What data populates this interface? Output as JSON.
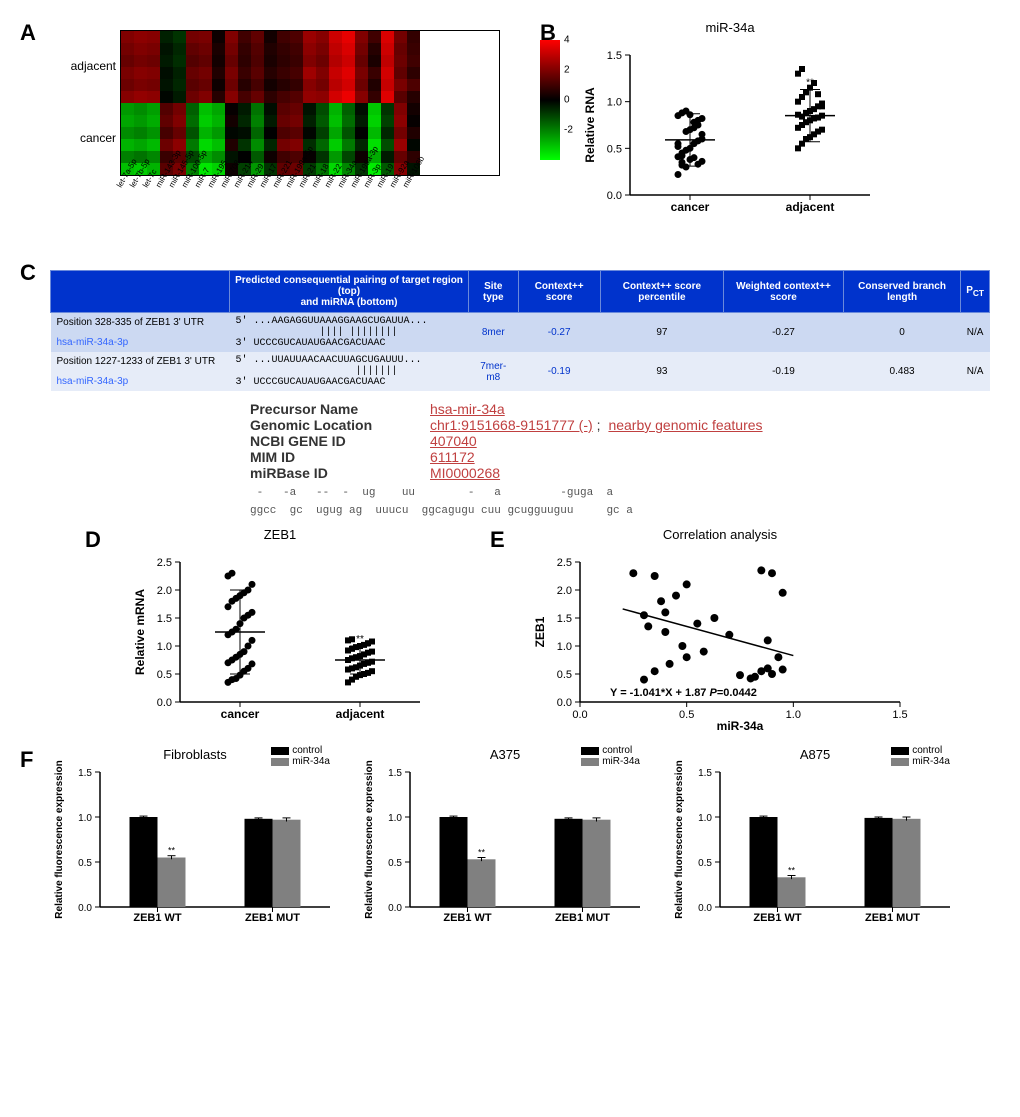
{
  "panelA": {
    "label": "A",
    "type": "heatmap",
    "row_group_labels": [
      "adjacent",
      "cancer"
    ],
    "colorbar_ticks": [
      4,
      2,
      0,
      -2
    ],
    "columns": [
      "let-7a-5p",
      "let-7b-5p",
      "let-7c",
      "miR-143-3p",
      "miR-145-5p",
      "miR-100-5p",
      "miR-7",
      "miR-195",
      "miR-708",
      "miR-214",
      "miR-29",
      "miR-17",
      "miR-221",
      "miR-199a-5p",
      "miR-21",
      "miR-18",
      "miR-22",
      "miR-34a",
      "miR-199a-3p",
      "miR-3p",
      "miR-19",
      "miR-92a",
      "miR-106b"
    ],
    "n_rows_per_group": 6,
    "values": [
      [
        2.0,
        2.2,
        2.1,
        -0.5,
        -0.8,
        1.8,
        1.9,
        0.2,
        2.0,
        1.0,
        1.5,
        0.3,
        1.0,
        1.2,
        2.4,
        2.1,
        3.2,
        3.6,
        2.0,
        1.0,
        3.4,
        1.8,
        0.8
      ],
      [
        1.8,
        2.0,
        1.9,
        -0.3,
        -0.6,
        1.5,
        1.7,
        0.4,
        1.8,
        0.8,
        1.3,
        0.5,
        0.8,
        1.0,
        2.2,
        1.9,
        3.0,
        3.4,
        1.8,
        0.6,
        3.2,
        1.6,
        0.9
      ],
      [
        1.6,
        1.8,
        1.7,
        -0.4,
        -0.7,
        1.3,
        1.5,
        0.3,
        1.6,
        0.7,
        1.2,
        0.4,
        0.7,
        0.9,
        2.0,
        1.7,
        2.8,
        3.2,
        1.6,
        0.4,
        3.0,
        1.7,
        1.0
      ],
      [
        1.9,
        2.1,
        2.0,
        -0.2,
        -0.5,
        1.6,
        1.8,
        0.5,
        1.9,
        0.9,
        1.4,
        0.6,
        0.9,
        1.1,
        2.5,
        2.0,
        3.1,
        3.5,
        1.9,
        0.9,
        3.3,
        1.5,
        0.7
      ],
      [
        1.7,
        1.9,
        1.8,
        -0.3,
        -0.6,
        1.4,
        1.6,
        0.2,
        1.7,
        0.6,
        1.1,
        0.3,
        0.6,
        0.8,
        2.1,
        1.8,
        2.9,
        3.3,
        1.7,
        0.5,
        3.1,
        1.9,
        1.2
      ],
      [
        2.1,
        2.3,
        2.2,
        -0.1,
        -0.4,
        1.7,
        2.0,
        0.6,
        2.1,
        1.1,
        1.6,
        0.7,
        1.1,
        1.3,
        2.3,
        2.2,
        3.3,
        3.7,
        2.1,
        0.8,
        3.5,
        1.4,
        0.6
      ],
      [
        -2.4,
        -2.2,
        -2.5,
        1.3,
        1.8,
        -1.5,
        -3.0,
        -2.6,
        0.1,
        -0.4,
        -1.8,
        -0.2,
        1.4,
        1.6,
        -0.3,
        -1.2,
        -2.8,
        -1.5,
        -0.2,
        -3.1,
        -0.8,
        2.0,
        0.3
      ],
      [
        -2.6,
        -2.4,
        -2.7,
        1.5,
        2.0,
        -1.7,
        -3.2,
        -2.8,
        0.3,
        -0.6,
        -2.0,
        -0.4,
        1.6,
        1.8,
        -0.5,
        -1.4,
        -3.0,
        -1.7,
        -0.4,
        -3.3,
        -1.0,
        2.2,
        0.1
      ],
      [
        -2.2,
        -2.0,
        -2.3,
        1.1,
        1.6,
        -1.3,
        -2.8,
        -2.4,
        -0.1,
        -0.2,
        -1.6,
        0.0,
        1.2,
        1.4,
        -0.1,
        -1.0,
        -2.6,
        -1.3,
        0.0,
        -2.9,
        -0.6,
        1.8,
        0.5
      ],
      [
        -2.8,
        -2.6,
        -2.9,
        1.7,
        2.2,
        -1.9,
        -3.4,
        -3.0,
        0.5,
        -0.8,
        -2.2,
        -0.6,
        1.8,
        2.0,
        -0.7,
        -1.6,
        -3.2,
        -1.9,
        -0.6,
        -3.5,
        -1.2,
        2.4,
        -0.1
      ],
      [
        -2.0,
        -1.8,
        -2.1,
        0.9,
        1.4,
        -1.1,
        -2.6,
        -2.2,
        -0.3,
        0.0,
        -1.4,
        0.2,
        1.0,
        1.2,
        0.1,
        -0.8,
        -2.4,
        -1.1,
        0.2,
        -2.7,
        -0.4,
        1.6,
        0.7
      ],
      [
        -3.0,
        -3.2,
        -2.8,
        1.4,
        1.9,
        -2.0,
        -3.6,
        -3.3,
        0.2,
        -1.0,
        -2.4,
        -0.8,
        1.5,
        1.7,
        -0.9,
        -1.8,
        -3.4,
        -2.1,
        -0.8,
        -3.7,
        -1.4,
        2.1,
        -0.3
      ]
    ]
  },
  "panelB": {
    "label": "B",
    "title": "miR-34a",
    "ylabel": "Relative RNA",
    "ylim": [
      0,
      1.5
    ],
    "ytick_step": 0.5,
    "groups": [
      "cancer",
      "adjacent"
    ],
    "sig": "**",
    "sig_group": 1,
    "data": {
      "cancer": [
        0.22,
        0.35,
        0.3,
        0.38,
        0.4,
        0.33,
        0.36,
        0.41,
        0.32,
        0.48,
        0.5,
        0.55,
        0.58,
        0.6,
        0.52,
        0.45,
        0.68,
        0.7,
        0.72,
        0.75,
        0.82,
        0.85,
        0.88,
        0.9,
        0.86,
        0.78,
        0.8,
        0.65,
        0.55,
        0.42
      ],
      "adjacent": [
        0.5,
        0.55,
        0.6,
        0.62,
        0.65,
        0.68,
        0.7,
        0.72,
        0.75,
        0.78,
        0.8,
        0.82,
        0.83,
        0.85,
        0.86,
        0.84,
        0.88,
        0.9,
        0.92,
        0.95,
        0.98,
        1.0,
        1.05,
        1.1,
        1.15,
        1.2,
        1.08,
        0.95,
        1.3,
        1.35
      ]
    },
    "means": {
      "cancer": 0.59,
      "adjacent": 0.85
    },
    "sds": {
      "cancer": 0.28,
      "adjacent": 0.28
    }
  },
  "panelC": {
    "label": "C",
    "headers": [
      "",
      "Predicted consequential pairing of target region (top)\nand miRNA (bottom)",
      "Site type",
      "Context++ score",
      "Context++ score percentile",
      "Weighted context++ score",
      "Conserved branch length",
      "P_CT"
    ],
    "rows": [
      {
        "pos": "Position 328-335 of ZEB1 3' UTR",
        "mirna": "hsa-miR-34a-3p",
        "seq_top": "5' ...AAGAGGUUAAAGGAAGCUGAUUA...",
        "seq_mid": "              |||| ||||||||",
        "seq_bot": "3'    UCCCGUCAUAUGAACGACUAAC",
        "site_type": "8mer",
        "score": "-0.27",
        "percentile": "97",
        "weighted": "-0.27",
        "branch": "0",
        "pct": "N/A"
      },
      {
        "pos": "Position 1227-1233 of ZEB1 3' UTR",
        "mirna": "hsa-miR-34a-3p",
        "seq_top": "5' ...UUAUUAACAACUUAGCUGAUUU...",
        "seq_mid": "                    |||||||",
        "seq_bot": "3'    UCCCGUCAUAUGAACGACUAAC",
        "site_type": "7mer-m8",
        "score": "-0.19",
        "percentile": "93",
        "weighted": "-0.19",
        "branch": "0.483",
        "pct": "N/A"
      }
    ],
    "info": [
      {
        "label": "Precursor Name",
        "val": "hsa-mir-34a"
      },
      {
        "label": "Genomic Location",
        "val": "chr1:9151668-9151777 (-)",
        "extra": "nearby genomic features"
      },
      {
        "label": "NCBI GENE ID",
        "val": "407040"
      },
      {
        "label": "MIM ID",
        "val": "611172"
      },
      {
        "label": "miRBase ID",
        "val": "MI0000268"
      }
    ],
    "seq1": " -   -a   --  -  ug    uu        -   a         -guga  a",
    "seq2": "ggcc  gc  ugug ag  uuucu  ggcagugu cuu gcugguuguu     gc a"
  },
  "panelD": {
    "label": "D",
    "title": "ZEB1",
    "ylabel": "Relative mRNA",
    "ylim": [
      0,
      2.5
    ],
    "ytick_step": 0.5,
    "groups": [
      "cancer",
      "adjacent"
    ],
    "sig": "**",
    "sig_group": 1,
    "data": {
      "cancer": [
        0.35,
        0.4,
        0.42,
        0.48,
        0.55,
        0.6,
        0.68,
        0.7,
        0.75,
        0.8,
        0.85,
        0.9,
        1.0,
        1.1,
        1.2,
        1.25,
        1.3,
        1.4,
        1.5,
        1.55,
        1.6,
        1.7,
        1.8,
        1.85,
        1.9,
        1.95,
        2.0,
        2.1,
        2.25,
        2.3
      ],
      "adjacent": [
        0.35,
        0.4,
        0.45,
        0.48,
        0.5,
        0.52,
        0.55,
        0.58,
        0.6,
        0.62,
        0.65,
        0.68,
        0.7,
        0.72,
        0.75,
        0.78,
        0.8,
        0.82,
        0.85,
        0.88,
        0.9,
        0.92,
        0.95,
        0.98,
        1.0,
        1.02,
        1.05,
        1.08,
        1.1,
        1.12
      ]
    },
    "means": {
      "cancer": 1.25,
      "adjacent": 0.75
    },
    "sds": {
      "cancer": 0.75,
      "adjacent": 0.25
    }
  },
  "panelE": {
    "label": "E",
    "title": "Correlation analysis",
    "xlabel": "miR-34a",
    "ylabel": "ZEB1",
    "xlim": [
      0,
      1.5
    ],
    "ylim": [
      0,
      2.5
    ],
    "xtick_step": 0.5,
    "ytick_step": 0.5,
    "equation": "Y = -1.041*X + 1.87 P=0.0442",
    "slope": -1.041,
    "intercept": 1.87,
    "points": [
      [
        0.25,
        2.3
      ],
      [
        0.3,
        1.55
      ],
      [
        0.3,
        0.4
      ],
      [
        0.32,
        1.35
      ],
      [
        0.35,
        2.25
      ],
      [
        0.35,
        0.55
      ],
      [
        0.38,
        1.8
      ],
      [
        0.4,
        1.25
      ],
      [
        0.4,
        1.6
      ],
      [
        0.42,
        0.68
      ],
      [
        0.45,
        1.9
      ],
      [
        0.48,
        1.0
      ],
      [
        0.5,
        2.1
      ],
      [
        0.5,
        0.8
      ],
      [
        0.55,
        1.4
      ],
      [
        0.58,
        0.9
      ],
      [
        0.63,
        1.5
      ],
      [
        0.7,
        1.2
      ],
      [
        0.75,
        0.48
      ],
      [
        0.8,
        0.42
      ],
      [
        0.82,
        0.45
      ],
      [
        0.85,
        2.35
      ],
      [
        0.85,
        0.55
      ],
      [
        0.88,
        1.1
      ],
      [
        0.88,
        0.6
      ],
      [
        0.9,
        2.3
      ],
      [
        0.9,
        0.5
      ],
      [
        0.93,
        0.8
      ],
      [
        0.95,
        1.95
      ],
      [
        0.95,
        0.58
      ]
    ]
  },
  "panelF": {
    "label": "F",
    "ylabel": "Relative fluorescence expression",
    "ylim": [
      0,
      1.5
    ],
    "ytick_step": 0.5,
    "xcats": [
      "ZEB1 WT",
      "ZEB1 MUT"
    ],
    "legend": [
      "control",
      "miR-34a"
    ],
    "colors": {
      "control": "#000000",
      "miR-34a": "#808080"
    },
    "charts": [
      {
        "title": "Fibroblasts",
        "values": {
          "ZEB1 WT": {
            "control": 1.0,
            "miR-34a": 0.55
          },
          "ZEB1 MUT": {
            "control": 0.98,
            "miR-34a": 0.97
          }
        },
        "errors": {
          "ZEB1 WT": {
            "control": 0.01,
            "miR-34a": 0.02
          },
          "ZEB1 MUT": {
            "control": 0.01,
            "miR-34a": 0.02
          }
        },
        "sig": {
          "ZEB1 WT": "**"
        }
      },
      {
        "title": "A375",
        "values": {
          "ZEB1 WT": {
            "control": 1.0,
            "miR-34a": 0.53
          },
          "ZEB1 MUT": {
            "control": 0.98,
            "miR-34a": 0.97
          }
        },
        "errors": {
          "ZEB1 WT": {
            "control": 0.01,
            "miR-34a": 0.02
          },
          "ZEB1 MUT": {
            "control": 0.01,
            "miR-34a": 0.02
          }
        },
        "sig": {
          "ZEB1 WT": "**"
        }
      },
      {
        "title": "A875",
        "values": {
          "ZEB1 WT": {
            "control": 1.0,
            "miR-34a": 0.33
          },
          "ZEB1 MUT": {
            "control": 0.99,
            "miR-34a": 0.98
          }
        },
        "errors": {
          "ZEB1 WT": {
            "control": 0.01,
            "miR-34a": 0.02
          },
          "ZEB1 MUT": {
            "control": 0.01,
            "miR-34a": 0.02
          }
        },
        "sig": {
          "ZEB1 WT": "**"
        }
      }
    ]
  }
}
